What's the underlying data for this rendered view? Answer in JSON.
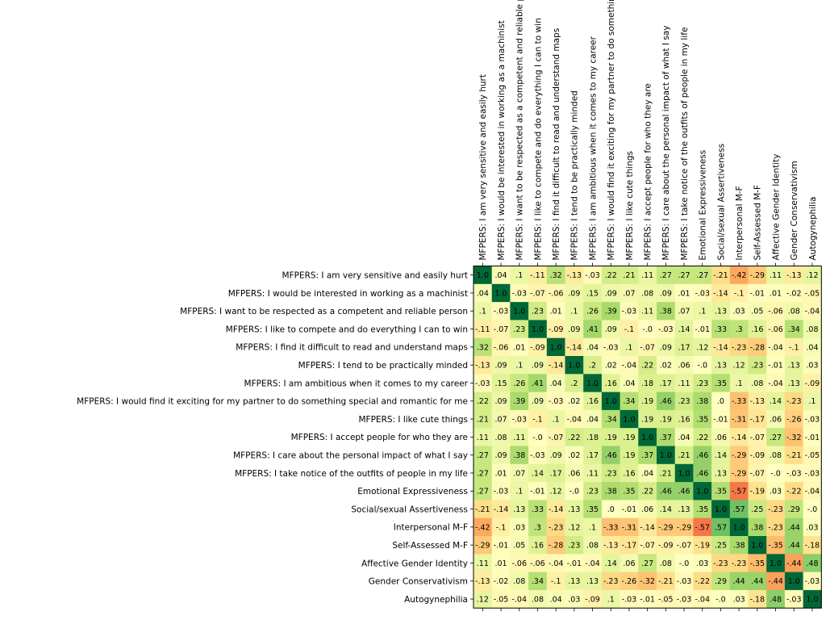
{
  "chart_data": {
    "type": "heatmap",
    "labels": [
      "MFPERS: I am very sensitive and easily hurt",
      "MFPERS: I would be interested in working as a machinist",
      "MFPERS: I want to be respected as a competent and reliable person",
      "MFPERS: I like to compete and do everything I can to win",
      "MFPERS: I find it difficult to read and understand maps",
      "MFPERS: I tend to be practically minded",
      "MFPERS: I am ambitious when it comes to my career",
      "MFPERS: I would find it exciting for my partner to do something special and romantic for me",
      "MFPERS: I like cute things",
      "MFPERS: I accept people for who they are",
      "MFPERS: I care about the personal impact of what I say",
      "MFPERS: I take notice of the outfits of people in my life",
      "Emotional Expressiveness",
      "Social/sexual Assertiveness",
      "Interpersonal M-F",
      "Self-Assessed M-F",
      "Affective Gender Identity",
      "Gender Conservativism",
      "Autogynephilia"
    ],
    "cells": [
      [
        "1.0",
        ".04",
        ".1",
        "-.11",
        ".32",
        "-.13",
        "-.03",
        ".22",
        ".21",
        ".11",
        ".27",
        ".27",
        ".27",
        "-.21",
        "-.42",
        "-.29",
        ".11",
        "-.13",
        ".12"
      ],
      [
        ".04",
        "1.0",
        "-.03",
        "-.07",
        "-.06",
        ".09",
        ".15",
        ".09",
        ".07",
        ".08",
        ".09",
        ".01",
        "-.03",
        "-.14",
        "-.1",
        "-.01",
        ".01",
        "-.02",
        "-.05"
      ],
      [
        ".1",
        "-.03",
        "1.0",
        ".23",
        ".01",
        ".1",
        ".26",
        ".39",
        "-.03",
        ".11",
        ".38",
        ".07",
        ".1",
        ".13",
        ".03",
        ".05",
        "-.06",
        ".08",
        "-.04"
      ],
      [
        "-.11",
        "-.07",
        ".23",
        "1.0",
        "-.09",
        ".09",
        ".41",
        ".09",
        "-.1",
        "-.0",
        "-.03",
        ".14",
        "-.01",
        ".33",
        ".3",
        ".16",
        "-.06",
        ".34",
        ".08"
      ],
      [
        ".32",
        "-.06",
        ".01",
        "-.09",
        "1.0",
        "-.14",
        ".04",
        "-.03",
        ".1",
        "-.07",
        ".09",
        ".17",
        ".12",
        "-.14",
        "-.23",
        "-.28",
        "-.04",
        "-.1",
        ".04"
      ],
      [
        "-.13",
        ".09",
        ".1",
        ".09",
        "-.14",
        "1.0",
        ".2",
        ".02",
        "-.04",
        ".22",
        ".02",
        ".06",
        "-.0",
        ".13",
        ".12",
        ".23",
        "-.01",
        ".13",
        ".03"
      ],
      [
        "-.03",
        ".15",
        ".26",
        ".41",
        ".04",
        ".2",
        "1.0",
        ".16",
        ".04",
        ".18",
        ".17",
        ".11",
        ".23",
        ".35",
        ".1",
        ".08",
        "-.04",
        ".13",
        "-.09"
      ],
      [
        ".22",
        ".09",
        ".39",
        ".09",
        "-.03",
        ".02",
        ".16",
        "1.0",
        ".34",
        ".19",
        ".46",
        ".23",
        ".38",
        ".0",
        "-.33",
        "-.13",
        ".14",
        "-.23",
        ".1"
      ],
      [
        ".21",
        ".07",
        "-.03",
        "-.1",
        ".1",
        "-.04",
        ".04",
        ".34",
        "1.0",
        ".19",
        ".19",
        ".16",
        ".35",
        "-.01",
        "-.31",
        "-.17",
        ".06",
        "-.26",
        "-.03"
      ],
      [
        ".11",
        ".08",
        ".11",
        "-.0",
        "-.07",
        ".22",
        ".18",
        ".19",
        ".19",
        "1.0",
        ".37",
        ".04",
        ".22",
        ".06",
        "-.14",
        "-.07",
        ".27",
        "-.32",
        "-.01"
      ],
      [
        ".27",
        ".09",
        ".38",
        "-.03",
        ".09",
        ".02",
        ".17",
        ".46",
        ".19",
        ".37",
        "1.0",
        ".21",
        ".46",
        ".14",
        "-.29",
        "-.09",
        ".08",
        "-.21",
        "-.05"
      ],
      [
        ".27",
        ".01",
        ".07",
        ".14",
        ".17",
        ".06",
        ".11",
        ".23",
        ".16",
        ".04",
        ".21",
        "1.0",
        ".46",
        ".13",
        "-.29",
        "-.07",
        "-.0",
        "-.03",
        "-.03"
      ],
      [
        ".27",
        "-.03",
        ".1",
        "-.01",
        ".12",
        "-.0",
        ".23",
        ".38",
        ".35",
        ".22",
        ".46",
        ".46",
        "1.0",
        ".35",
        "-.57",
        "-.19",
        ".03",
        "-.22",
        "-.04"
      ],
      [
        "-.21",
        "-.14",
        ".13",
        ".33",
        "-.14",
        ".13",
        ".35",
        ".0",
        "-.01",
        ".06",
        ".14",
        ".13",
        ".35",
        "1.0",
        ".57",
        ".25",
        "-.23",
        ".29",
        "-.0"
      ],
      [
        "-.42",
        "-.1",
        ".03",
        ".3",
        "-.23",
        ".12",
        ".1",
        "-.33",
        "-.31",
        "-.14",
        "-.29",
        "-.29",
        "-.57",
        ".57",
        "1.0",
        ".38",
        "-.23",
        ".44",
        ".03"
      ],
      [
        "-.29",
        "-.01",
        ".05",
        ".16",
        "-.28",
        ".23",
        ".08",
        "-.13",
        "-.17",
        "-.07",
        "-.09",
        "-.07",
        "-.19",
        ".25",
        ".38",
        "1.0",
        "-.35",
        ".44",
        "-.18"
      ],
      [
        ".11",
        ".01",
        "-.06",
        "-.06",
        "-.04",
        "-.01",
        "-.04",
        ".14",
        ".06",
        ".27",
        ".08",
        "-.0",
        ".03",
        "-.23",
        "-.23",
        "-.35",
        "1.0",
        "-.44",
        ".48"
      ],
      [
        "-.13",
        "-.02",
        ".08",
        ".34",
        "-.1",
        ".13",
        ".13",
        "-.23",
        "-.26",
        "-.32",
        "-.21",
        "-.03",
        "-.22",
        ".29",
        ".44",
        ".44",
        "-.44",
        "1.0",
        "-.03"
      ],
      [
        ".12",
        "-.05",
        "-.04",
        ".08",
        ".04",
        ".03",
        "-.09",
        ".1",
        "-.03",
        "-.01",
        "-.05",
        "-.03",
        "-.04",
        "-.0",
        ".03",
        "-.18",
        ".48",
        "-.03",
        "1.0"
      ]
    ],
    "colormap": "RdYlGn",
    "vmin": -1,
    "vmax": 1,
    "grid": false,
    "legend": "none"
  }
}
